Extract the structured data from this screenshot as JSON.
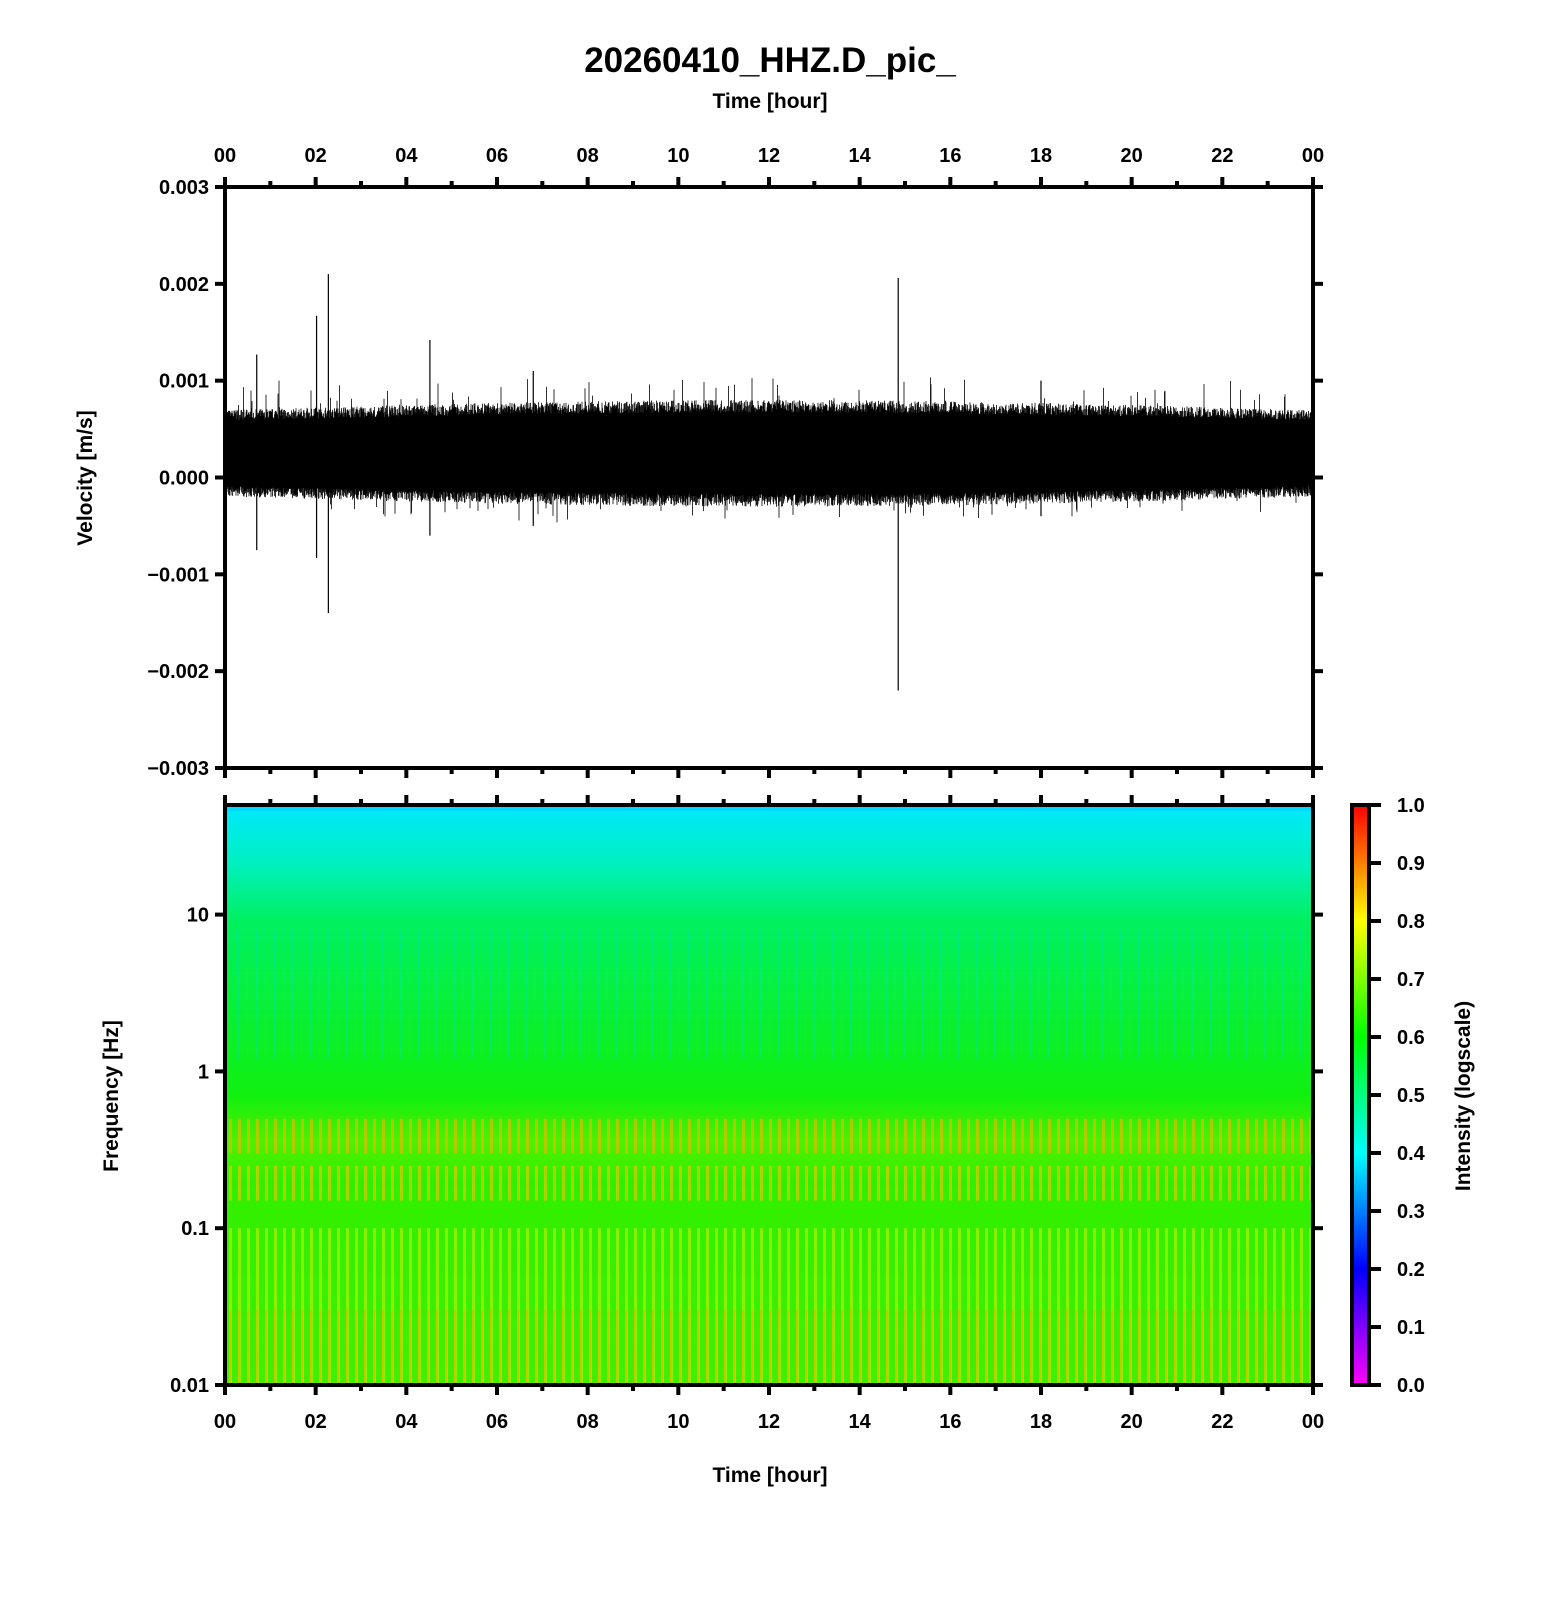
{
  "chart_data": [
    {
      "type": "line",
      "title": "20260410_HHZ.D_pic_",
      "xlabel_top": "Time [hour]",
      "ylabel": "Velocity [m/s]",
      "xlim": [
        0,
        24
      ],
      "ylim": [
        -0.003,
        0.003
      ],
      "xticks": [
        "00",
        "02",
        "04",
        "06",
        "08",
        "10",
        "12",
        "14",
        "16",
        "18",
        "20",
        "22",
        "00"
      ],
      "yticks": [
        "0.003",
        "0.002",
        "0.001",
        "0.000",
        "−0.001",
        "−0.002",
        "−0.003"
      ],
      "ytick_values": [
        0.003,
        0.002,
        0.001,
        0.0,
        -0.001,
        -0.002,
        -0.003
      ],
      "noise_band": {
        "upper": 0.00075,
        "lower": -0.00025,
        "mean": 0.00025
      },
      "spikes": [
        {
          "hour": 0.7,
          "max": 0.00127,
          "min": -0.00075
        },
        {
          "hour": 2.02,
          "max": 0.00167,
          "min": -0.00083
        },
        {
          "hour": 2.28,
          "max": 0.0021,
          "min": -0.0014
        },
        {
          "hour": 4.52,
          "max": 0.00142,
          "min": -0.0006
        },
        {
          "hour": 6.8,
          "max": 0.0011,
          "min": -0.0005
        },
        {
          "hour": 14.85,
          "max": 0.00206,
          "min": -0.0022
        },
        {
          "hour": 18.0,
          "max": 0.001,
          "min": -0.0004
        }
      ],
      "color": "#000000"
    },
    {
      "type": "heatmap",
      "xlabel": "Time [hour]",
      "ylabel": "Frequency [Hz]",
      "yscale": "log",
      "xlim": [
        0,
        24
      ],
      "ylim": [
        0.01,
        50
      ],
      "xticks": [
        "00",
        "02",
        "04",
        "06",
        "08",
        "10",
        "12",
        "14",
        "16",
        "18",
        "20",
        "22",
        "00"
      ],
      "yticks": [
        "10",
        "1",
        "0.1",
        "0.01"
      ],
      "ytick_values": [
        10,
        1,
        0.1,
        0.01
      ],
      "intensity_profile": [
        {
          "freq": 50,
          "intensity": 0.42
        },
        {
          "freq": 10,
          "intensity": 0.55
        },
        {
          "freq": 1,
          "intensity": 0.6
        },
        {
          "freq": 0.3,
          "intensity": 0.78
        },
        {
          "freq": 0.1,
          "intensity": 0.65
        },
        {
          "freq": 0.01,
          "intensity": 0.75
        }
      ],
      "colorbar": {
        "label": "Intensity (logscale)",
        "range": [
          0.0,
          1.0
        ],
        "ticks": [
          "1.0",
          "0.9",
          "0.8",
          "0.7",
          "0.6",
          "0.5",
          "0.4",
          "0.3",
          "0.2",
          "0.1",
          "0.0"
        ]
      }
    }
  ]
}
